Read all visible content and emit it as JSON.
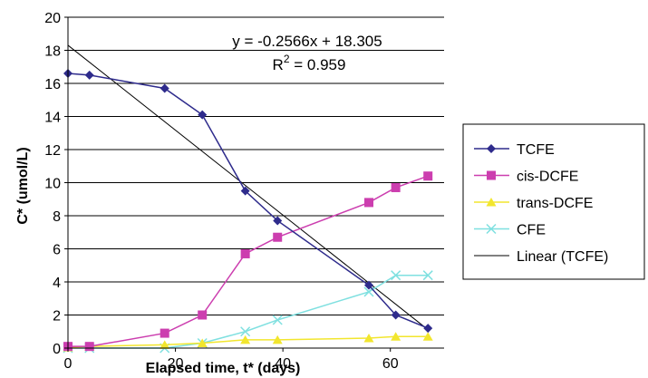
{
  "chart_data": {
    "type": "line",
    "xlabel": "Elapsed time, t* (days)",
    "ylabel": "C* (umol/L)",
    "xlim": [
      0,
      70
    ],
    "ylim": [
      0,
      20
    ],
    "x_ticks": [
      0,
      20,
      40,
      60
    ],
    "y_ticks": [
      0,
      2,
      4,
      6,
      8,
      10,
      12,
      14,
      16,
      18,
      20
    ],
    "grid": "horizontal",
    "legend_position": "right",
    "x": [
      0,
      4,
      18,
      25,
      33,
      39,
      56,
      61,
      67
    ],
    "series": [
      {
        "name": "TCFE",
        "marker": "diamond",
        "color": "#2E2B8C",
        "values": [
          16.6,
          16.5,
          15.7,
          14.1,
          9.5,
          7.7,
          3.8,
          2.0,
          1.2
        ]
      },
      {
        "name": "cis-DCFE",
        "marker": "square",
        "color": "#CC3EAF",
        "values": [
          0.1,
          0.1,
          0.9,
          2.0,
          5.7,
          6.7,
          8.8,
          9.7,
          10.4
        ]
      },
      {
        "name": "trans-DCFE",
        "marker": "triangle",
        "color": "#F2E62E",
        "values": [
          0.05,
          0.1,
          0.2,
          0.3,
          0.5,
          0.5,
          0.6,
          0.7,
          0.7
        ]
      },
      {
        "name": "CFE",
        "marker": "x",
        "color": "#7FE0E0",
        "values": [
          0.0,
          0.0,
          0.0,
          0.3,
          1.0,
          1.7,
          3.4,
          4.4,
          4.4
        ]
      }
    ],
    "trendline": {
      "name": "Linear (TCFE)",
      "slope": -0.2566,
      "intercept": 18.305,
      "x_range": [
        0,
        67
      ],
      "color": "#000000",
      "equation": "y = -0.2566x + 18.305",
      "r2_prefix": "R",
      "r2_exp": "2",
      "r2_value": " = 0.959"
    }
  }
}
